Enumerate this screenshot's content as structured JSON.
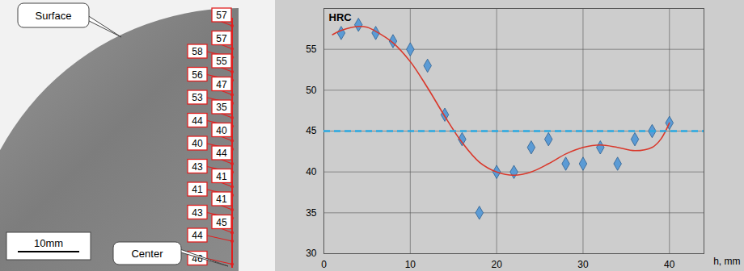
{
  "chart_data": {
    "type": "scatter",
    "ylabel": "HRC",
    "xlabel": "h, mm",
    "xlim": [
      0,
      44
    ],
    "xticks": [
      0,
      10,
      20,
      30,
      40
    ],
    "ylim": [
      30,
      60
    ],
    "yticks": [
      30,
      35,
      40,
      45,
      50,
      55
    ],
    "grid": true,
    "series": [
      {
        "type": "scatter",
        "marker": "diamond",
        "color": "#5b9bd5",
        "x": [
          2,
          4,
          6,
          8,
          10,
          12,
          14,
          16,
          18,
          20,
          22,
          24,
          26,
          28,
          30,
          32,
          34,
          36,
          38,
          40
        ],
        "values": [
          57,
          58,
          57,
          56,
          55,
          53,
          47,
          44,
          35,
          40,
          40,
          43,
          44,
          41,
          41,
          43,
          41,
          44,
          45,
          46
        ]
      },
      {
        "type": "line",
        "color": "#d9382b",
        "x": [
          1,
          2,
          4,
          5,
          6,
          8,
          10,
          12,
          14,
          16,
          18,
          20,
          22,
          24,
          26,
          28,
          30,
          32,
          34,
          36,
          38,
          39,
          40
        ],
        "values": [
          56.8,
          57.3,
          57.8,
          57.7,
          57.2,
          55.8,
          53.5,
          50.3,
          46.8,
          43.6,
          41.2,
          40,
          39.6,
          40,
          41,
          42.2,
          43,
          43.3,
          43,
          42.6,
          43,
          44,
          46
        ]
      },
      {
        "type": "hline",
        "line_style": "dashed",
        "color": "#29a8e0",
        "values": [
          45
        ]
      }
    ]
  },
  "specimen": {
    "callouts": {
      "surface": "Surface",
      "center": "Center"
    },
    "scale_bar": "10mm",
    "labels_left_column": [
      58,
      56,
      53,
      44,
      40,
      43,
      41,
      43,
      44,
      46
    ],
    "labels_right_column": [
      57,
      57,
      55,
      47,
      35,
      40,
      44,
      41,
      41,
      45
    ]
  }
}
